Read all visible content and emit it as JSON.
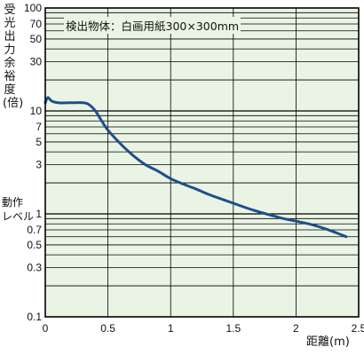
{
  "chart_data": {
    "type": "line",
    "ylabel": "受光出力余裕度(倍)",
    "xlabel": "距離(m)",
    "reference_label": [
      "動作",
      "レベル"
    ],
    "annotation": "検出物体：白画用紙300×300mm",
    "y_scale": "log",
    "xlim": [
      0,
      2.5
    ],
    "ylim": [
      0.1,
      100
    ],
    "x_ticks": [
      0,
      0.5,
      1,
      1.5,
      2,
      2.5
    ],
    "x_tick_labels": [
      "0",
      "0.5",
      "1",
      "1.5",
      "2",
      "2.5"
    ],
    "y_ticks": [
      0.1,
      0.3,
      0.5,
      0.7,
      1,
      3,
      5,
      7,
      10,
      30,
      50,
      70,
      100
    ],
    "y_tick_labels": [
      "0.1",
      "0.3",
      "0.5",
      "0.7",
      "1",
      "3",
      "5",
      "7",
      "10",
      "30",
      "50",
      "70",
      "100"
    ],
    "grid": true,
    "background_color": "#eaf4e4",
    "line_color": "#1f4e8c",
    "series": [
      {
        "x": [
          0,
          0.02,
          0.05,
          0.1,
          0.2,
          0.3,
          0.35,
          0.4,
          0.45,
          0.5,
          0.6,
          0.7,
          0.8,
          0.9,
          1.0,
          1.1,
          1.2,
          1.3,
          1.4,
          1.5,
          1.6,
          1.7,
          1.8,
          1.9,
          2.0,
          2.1,
          2.2,
          2.3,
          2.4
        ],
        "y": [
          12,
          13.5,
          12.5,
          12,
          12,
          12,
          11.5,
          10,
          8,
          6.5,
          4.8,
          3.7,
          3.0,
          2.6,
          2.2,
          1.95,
          1.75,
          1.55,
          1.4,
          1.27,
          1.15,
          1.05,
          0.97,
          0.9,
          0.85,
          0.8,
          0.74,
          0.67,
          0.6
        ]
      }
    ]
  }
}
